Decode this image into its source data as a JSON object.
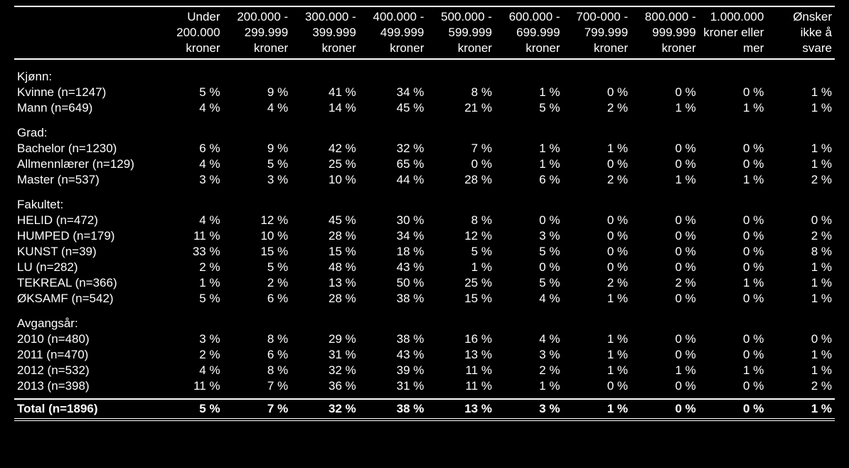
{
  "columns": [
    [
      "Under",
      "200.000",
      "kroner"
    ],
    [
      "200.000 -",
      "299.999",
      "kroner"
    ],
    [
      "300.000 -",
      "399.999",
      "kroner"
    ],
    [
      "400.000 -",
      "499.999",
      "kroner"
    ],
    [
      "500.000 -",
      "599.999",
      "kroner"
    ],
    [
      "600.000 -",
      "699.999",
      "kroner"
    ],
    [
      "700-000 -",
      "799.999",
      "kroner"
    ],
    [
      "800.000 -",
      "999.999",
      "kroner"
    ],
    [
      "1.000.000",
      "kroner eller",
      "mer"
    ],
    [
      "Ønsker",
      "ikke å",
      "svare"
    ]
  ],
  "sections": [
    {
      "title": "Kjønn:",
      "rows": [
        {
          "label": "Kvinne (n=1247)",
          "values": [
            "5 %",
            "9 %",
            "41 %",
            "34 %",
            "8 %",
            "1 %",
            "0 %",
            "0 %",
            "0 %",
            "1 %"
          ]
        },
        {
          "label": "Mann (n=649)",
          "values": [
            "4 %",
            "4 %",
            "14 %",
            "45 %",
            "21 %",
            "5 %",
            "2 %",
            "1 %",
            "1 %",
            "1 %"
          ]
        }
      ]
    },
    {
      "title": "Grad:",
      "rows": [
        {
          "label": "Bachelor (n=1230)",
          "values": [
            "6 %",
            "9 %",
            "42 %",
            "32 %",
            "7 %",
            "1 %",
            "1 %",
            "0 %",
            "0 %",
            "1 %"
          ]
        },
        {
          "label": "Allmennlærer (n=129)",
          "values": [
            "4 %",
            "5 %",
            "25 %",
            "65 %",
            "0 %",
            "1 %",
            "0 %",
            "0 %",
            "0 %",
            "1 %"
          ]
        },
        {
          "label": "Master (n=537)",
          "values": [
            "3 %",
            "3 %",
            "10 %",
            "44 %",
            "28 %",
            "6 %",
            "2 %",
            "1 %",
            "1 %",
            "2 %"
          ]
        }
      ]
    },
    {
      "title": "Fakultet:",
      "rows": [
        {
          "label": "HELID (n=472)",
          "values": [
            "4 %",
            "12 %",
            "45 %",
            "30 %",
            "8 %",
            "0 %",
            "0 %",
            "0 %",
            "0 %",
            "0 %"
          ]
        },
        {
          "label": "HUMPED (n=179)",
          "values": [
            "11 %",
            "10 %",
            "28 %",
            "34 %",
            "12 %",
            "3 %",
            "0 %",
            "0 %",
            "0 %",
            "2 %"
          ]
        },
        {
          "label": "KUNST (n=39)",
          "values": [
            "33 %",
            "15 %",
            "15 %",
            "18 %",
            "5 %",
            "5 %",
            "0 %",
            "0 %",
            "0 %",
            "8 %"
          ]
        },
        {
          "label": "LU (n=282)",
          "values": [
            "2 %",
            "5 %",
            "48 %",
            "43 %",
            "1 %",
            "0 %",
            "0 %",
            "0 %",
            "0 %",
            "1 %"
          ]
        },
        {
          "label": "TEKREAL (n=366)",
          "values": [
            "1 %",
            "2 %",
            "13 %",
            "50 %",
            "25 %",
            "5 %",
            "2 %",
            "2 %",
            "1 %",
            "1 %"
          ]
        },
        {
          "label": "ØKSAMF (n=542)",
          "values": [
            "5 %",
            "6 %",
            "28 %",
            "38 %",
            "15 %",
            "4 %",
            "1 %",
            "0 %",
            "0 %",
            "1 %"
          ]
        }
      ]
    },
    {
      "title": "Avgangsår:",
      "rows": [
        {
          "label": "2010 (n=480)",
          "values": [
            "3 %",
            "8 %",
            "29 %",
            "38 %",
            "16 %",
            "4 %",
            "1 %",
            "0 %",
            "0 %",
            "0 %"
          ]
        },
        {
          "label": "2011 (n=470)",
          "values": [
            "2 %",
            "6 %",
            "31 %",
            "43 %",
            "13 %",
            "3 %",
            "1 %",
            "0 %",
            "0 %",
            "1 %"
          ]
        },
        {
          "label": "2012 (n=532)",
          "values": [
            "4 %",
            "8 %",
            "32 %",
            "39 %",
            "11 %",
            "2 %",
            "1 %",
            "1 %",
            "1 %",
            "1 %"
          ]
        },
        {
          "label": "2013 (n=398)",
          "values": [
            "11 %",
            "7 %",
            "36 %",
            "31 %",
            "11 %",
            "1 %",
            "0 %",
            "0 %",
            "0 %",
            "2 %"
          ]
        }
      ]
    }
  ],
  "total": {
    "label": "Total (n=1896)",
    "values": [
      "5 %",
      "7 %",
      "32 %",
      "38 %",
      "13 %",
      "3 %",
      "1 %",
      "0 %",
      "0 %",
      "1 %"
    ]
  }
}
